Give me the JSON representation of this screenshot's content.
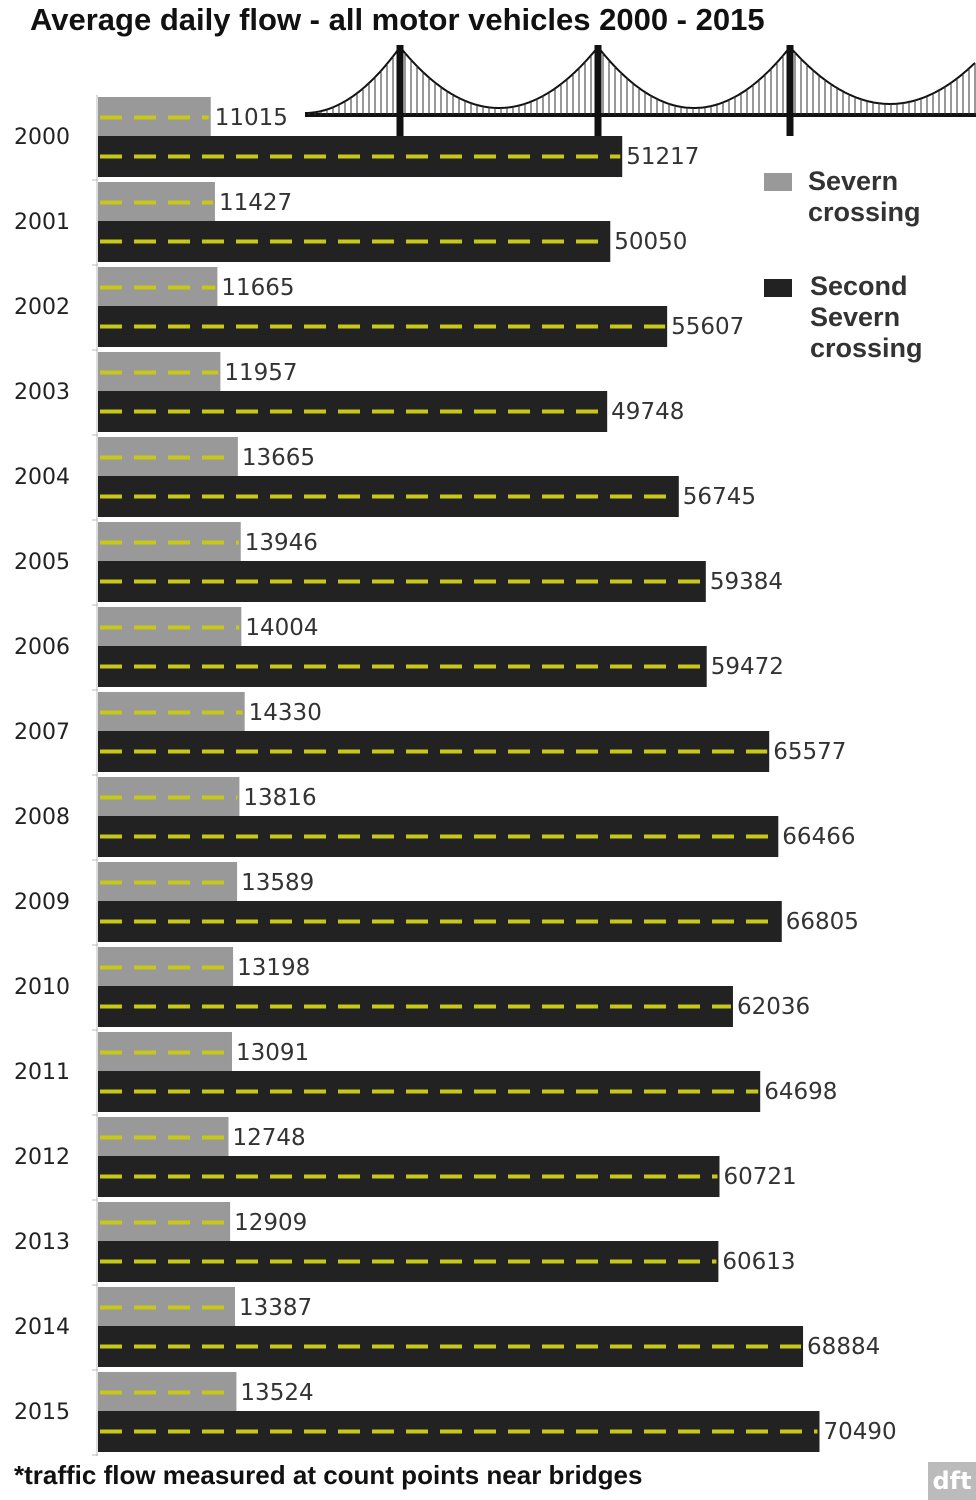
{
  "chart_data": {
    "type": "bar",
    "orientation": "horizontal",
    "title": "Average daily flow - all motor vehicles 2000 - 2015",
    "footnote": "*traffic flow measured at count points near bridges",
    "credit": "dft",
    "categories": [
      "2000",
      "2001",
      "2002",
      "2003",
      "2004",
      "2005",
      "2006",
      "2007",
      "2008",
      "2009",
      "2010",
      "2011",
      "2012",
      "2013",
      "2014",
      "2015"
    ],
    "series": [
      {
        "name": "Severn crossing",
        "color": "#999999",
        "values": [
          11015,
          11427,
          11665,
          11957,
          13665,
          13946,
          14004,
          14330,
          13816,
          13589,
          13198,
          13091,
          12748,
          12909,
          13387,
          13524
        ]
      },
      {
        "name": "Second Severn crossing",
        "color": "#222222",
        "values": [
          51217,
          50050,
          55607,
          49748,
          56745,
          59384,
          59472,
          65577,
          66466,
          66805,
          62036,
          64698,
          60721,
          60613,
          68884,
          70490
        ]
      }
    ],
    "xlim": [
      0,
      85000
    ],
    "legend": "top-right",
    "lane_color": "#c8c818"
  }
}
